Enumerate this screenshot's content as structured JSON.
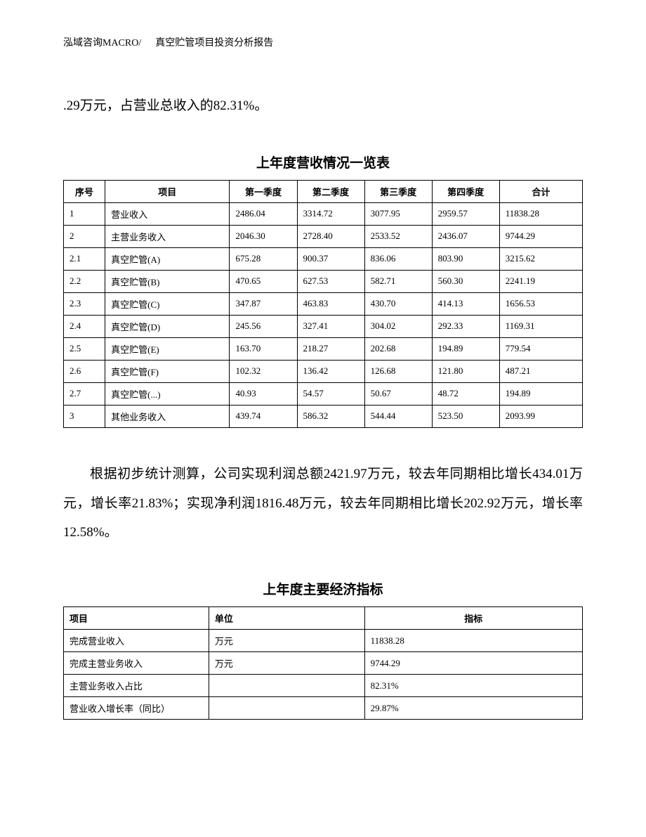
{
  "header": {
    "company": "泓域咨询MACRO/",
    "doc_title": "真空贮管项目投资分析报告"
  },
  "paragraph1": ".29万元，占营业总收入的82.31%。",
  "table1": {
    "title": "上年度营收情况一览表",
    "columns": [
      "序号",
      "项目",
      "第一季度",
      "第二季度",
      "第三季度",
      "第四季度",
      "合计"
    ],
    "rows": [
      [
        "1",
        "营业收入",
        "2486.04",
        "3314.72",
        "3077.95",
        "2959.57",
        "11838.28"
      ],
      [
        "2",
        "主营业务收入",
        "2046.30",
        "2728.40",
        "2533.52",
        "2436.07",
        "9744.29"
      ],
      [
        "2.1",
        "真空贮管(A)",
        "675.28",
        "900.37",
        "836.06",
        "803.90",
        "3215.62"
      ],
      [
        "2.2",
        "真空贮管(B)",
        "470.65",
        "627.53",
        "582.71",
        "560.30",
        "2241.19"
      ],
      [
        "2.3",
        "真空贮管(C)",
        "347.87",
        "463.83",
        "430.70",
        "414.13",
        "1656.53"
      ],
      [
        "2.4",
        "真空贮管(D)",
        "245.56",
        "327.41",
        "304.02",
        "292.33",
        "1169.31"
      ],
      [
        "2.5",
        "真空贮管(E)",
        "163.70",
        "218.27",
        "202.68",
        "194.89",
        "779.54"
      ],
      [
        "2.6",
        "真空贮管(F)",
        "102.32",
        "136.42",
        "126.68",
        "121.80",
        "487.21"
      ],
      [
        "2.7",
        "真空贮管(...)",
        "40.93",
        "54.57",
        "50.67",
        "48.72",
        "194.89"
      ],
      [
        "3",
        "其他业务收入",
        "439.74",
        "586.32",
        "544.44",
        "523.50",
        "2093.99"
      ]
    ]
  },
  "paragraph2": "根据初步统计测算，公司实现利润总额2421.97万元，较去年同期相比增长434.01万元，增长率21.83%；实现净利润1816.48万元，较去年同期相比增长202.92万元，增长率12.58%。",
  "table2": {
    "title": "上年度主要经济指标",
    "columns": [
      "项目",
      "单位",
      "指标"
    ],
    "rows": [
      [
        "完成营业收入",
        "万元",
        "11838.28"
      ],
      [
        "完成主营业务收入",
        "万元",
        "9744.29"
      ],
      [
        "主营业务收入占比",
        "",
        "82.31%"
      ],
      [
        "营业收入增长率（同比）",
        "",
        "29.87%"
      ]
    ]
  }
}
